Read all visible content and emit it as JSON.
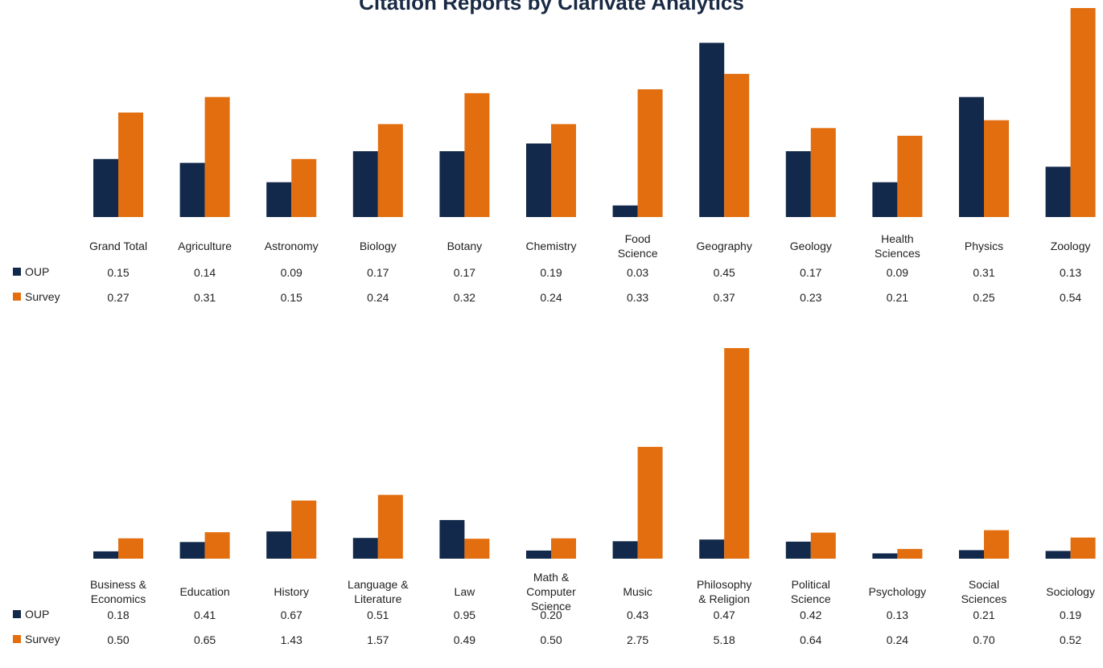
{
  "title": "Citation Reports by Clarivate Analytics",
  "colors": {
    "oup": "#13294b",
    "survey": "#e26e0f"
  },
  "chart_data": [
    {
      "type": "bar",
      "title": "Citation Reports by Clarivate Analytics",
      "categories": [
        [
          "Grand Total"
        ],
        [
          "Agriculture"
        ],
        [
          "Astronomy"
        ],
        [
          "Biology"
        ],
        [
          "Botany"
        ],
        [
          "Chemistry"
        ],
        [
          "Food",
          "Science"
        ],
        [
          "Geography"
        ],
        [
          "Geology"
        ],
        [
          "Health",
          "Sciences"
        ],
        [
          "Physics"
        ],
        [
          "Zoology"
        ]
      ],
      "series": [
        {
          "name": "OUP",
          "values": [
            "0.15",
            "0.14",
            "0.09",
            "0.17",
            "0.17",
            "0.19",
            "0.03",
            "0.45",
            "0.17",
            "0.09",
            "0.31",
            "0.13"
          ]
        },
        {
          "name": "Survey",
          "values": [
            "0.27",
            "0.31",
            "0.15",
            "0.24",
            "0.32",
            "0.24",
            "0.33",
            "0.37",
            "0.23",
            "0.21",
            "0.25",
            "0.54"
          ]
        }
      ],
      "legend": "data-table-left"
    },
    {
      "type": "bar",
      "categories": [
        [
          "Business &",
          "Economics"
        ],
        [
          "Education"
        ],
        [
          "History"
        ],
        [
          "Language &",
          "Literature"
        ],
        [
          "Law"
        ],
        [
          "Math &",
          "Computer",
          "Science"
        ],
        [
          "Music"
        ],
        [
          "Philosophy",
          "& Religion"
        ],
        [
          "Political",
          "Science"
        ],
        [
          "Psychology"
        ],
        [
          "Social",
          "Sciences"
        ],
        [
          "Sociology"
        ]
      ],
      "series": [
        {
          "name": "OUP",
          "values": [
            "0.18",
            "0.41",
            "0.67",
            "0.51",
            "0.95",
            "0.20",
            "0.43",
            "0.47",
            "0.42",
            "0.13",
            "0.21",
            "0.19"
          ]
        },
        {
          "name": "Survey",
          "values": [
            "0.50",
            "0.65",
            "1.43",
            "1.57",
            "0.49",
            "0.50",
            "2.75",
            "5.18",
            "0.64",
            "0.24",
            "0.70",
            "0.52"
          ]
        }
      ],
      "legend": "data-table-left"
    }
  ]
}
